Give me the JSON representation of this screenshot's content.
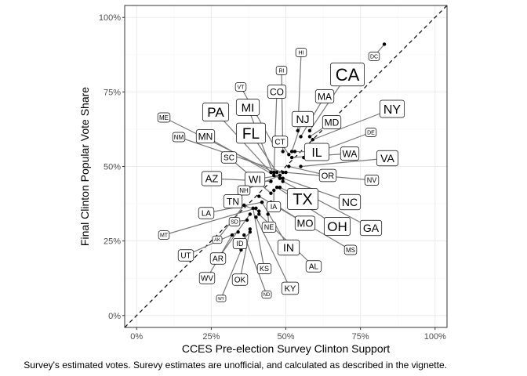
{
  "chart_data": {
    "type": "scatter",
    "title": "",
    "xlabel": "CCES Pre-election Survey Clinton Support",
    "ylabel": "Final Clinton Popular Vote Share",
    "caption": "Survey's estimated votes. Surevy estimates are unofficial, and calculated as described in the vignette.",
    "xlim": [
      -0.04,
      1.04
    ],
    "ylim": [
      -0.04,
      1.04
    ],
    "x_ticks": [
      0,
      0.25,
      0.5,
      0.75,
      1.0
    ],
    "x_tick_labels": [
      "0%",
      "25%",
      "50%",
      "75%",
      "100%"
    ],
    "y_ticks": [
      0,
      0.25,
      0.5,
      0.75,
      1.0
    ],
    "y_tick_labels": [
      "0%",
      "25%",
      "50%",
      "75%",
      "100%"
    ],
    "grid": true,
    "reference_line": "y = x (dashed)",
    "legend": "none",
    "point_color": "#000000",
    "points": [
      {
        "label": "DC",
        "x": 0.83,
        "y": 0.91,
        "size": 7
      },
      {
        "label": "HI",
        "x": 0.54,
        "y": 0.62,
        "size": 7
      },
      {
        "label": "CA",
        "x": 0.58,
        "y": 0.62,
        "size": 22
      },
      {
        "label": "RI",
        "x": 0.49,
        "y": 0.55,
        "size": 7
      },
      {
        "label": "VT",
        "x": 0.46,
        "y": 0.57,
        "size": 7
      },
      {
        "label": "NY",
        "x": 0.59,
        "y": 0.59,
        "size": 16
      },
      {
        "label": "MA",
        "x": 0.55,
        "y": 0.6,
        "size": 12
      },
      {
        "label": "CO",
        "x": 0.46,
        "y": 0.48,
        "size": 12
      },
      {
        "label": "MD",
        "x": 0.58,
        "y": 0.6,
        "size": 12
      },
      {
        "label": "MI",
        "x": 0.46,
        "y": 0.47,
        "size": 15
      },
      {
        "label": "PA",
        "x": 0.45,
        "y": 0.48,
        "size": 17
      },
      {
        "label": "NJ",
        "x": 0.52,
        "y": 0.55,
        "size": 14
      },
      {
        "label": "DE",
        "x": 0.56,
        "y": 0.53,
        "size": 7
      },
      {
        "label": "FL",
        "x": 0.47,
        "y": 0.48,
        "size": 19
      },
      {
        "label": "CT",
        "x": 0.51,
        "y": 0.54,
        "size": 10
      },
      {
        "label": "ME",
        "x": 0.46,
        "y": 0.48,
        "size": 8
      },
      {
        "label": "NM",
        "x": 0.49,
        "y": 0.48,
        "size": 8
      },
      {
        "label": "MN",
        "x": 0.48,
        "y": 0.46,
        "size": 12
      },
      {
        "label": "IL",
        "x": 0.53,
        "y": 0.55,
        "size": 16
      },
      {
        "label": "WA",
        "x": 0.52,
        "y": 0.53,
        "size": 12
      },
      {
        "label": "VA",
        "x": 0.55,
        "y": 0.5,
        "size": 14
      },
      {
        "label": "SC",
        "x": 0.45,
        "y": 0.41,
        "size": 10
      },
      {
        "label": "OR",
        "x": 0.51,
        "y": 0.5,
        "size": 11
      },
      {
        "label": "AZ",
        "x": 0.45,
        "y": 0.45,
        "size": 13
      },
      {
        "label": "WI",
        "x": 0.48,
        "y": 0.47,
        "size": 13
      },
      {
        "label": "NV",
        "x": 0.5,
        "y": 0.48,
        "size": 9
      },
      {
        "label": "NH",
        "x": 0.48,
        "y": 0.47,
        "size": 8
      },
      {
        "label": "TX",
        "x": 0.48,
        "y": 0.43,
        "size": 20
      },
      {
        "label": "NC",
        "x": 0.49,
        "y": 0.46,
        "size": 14
      },
      {
        "label": "TN",
        "x": 0.41,
        "y": 0.35,
        "size": 12
      },
      {
        "label": "IA",
        "x": 0.46,
        "y": 0.42,
        "size": 9
      },
      {
        "label": "LA",
        "x": 0.42,
        "y": 0.38,
        "size": 10
      },
      {
        "label": "MO",
        "x": 0.45,
        "y": 0.38,
        "size": 13
      },
      {
        "label": "OH",
        "x": 0.47,
        "y": 0.43,
        "size": 17
      },
      {
        "label": "GA",
        "x": 0.49,
        "y": 0.45,
        "size": 14
      },
      {
        "label": "SD",
        "x": 0.37,
        "y": 0.32,
        "size": 7
      },
      {
        "label": "NE",
        "x": 0.44,
        "y": 0.34,
        "size": 9
      },
      {
        "label": "MT",
        "x": 0.4,
        "y": 0.36,
        "size": 7
      },
      {
        "label": "AK",
        "x": 0.36,
        "y": 0.37,
        "size": 6
      },
      {
        "label": "IN",
        "x": 0.42,
        "y": 0.38,
        "size": 14
      },
      {
        "label": "MS",
        "x": 0.41,
        "y": 0.4,
        "size": 8
      },
      {
        "label": "ID",
        "x": 0.38,
        "y": 0.28,
        "size": 9
      },
      {
        "label": "UT",
        "x": 0.34,
        "y": 0.28,
        "size": 10
      },
      {
        "label": "AR",
        "x": 0.38,
        "y": 0.34,
        "size": 10
      },
      {
        "label": "AL",
        "x": 0.41,
        "y": 0.34,
        "size": 10
      },
      {
        "label": "KS",
        "x": 0.39,
        "y": 0.36,
        "size": 9
      },
      {
        "label": "WV",
        "x": 0.32,
        "y": 0.27,
        "size": 10
      },
      {
        "label": "OK",
        "x": 0.38,
        "y": 0.29,
        "size": 10
      },
      {
        "label": "KY",
        "x": 0.4,
        "y": 0.33,
        "size": 11
      },
      {
        "label": "ND",
        "x": 0.36,
        "y": 0.27,
        "size": 6
      },
      {
        "label": "WY",
        "x": 0.35,
        "y": 0.22,
        "size": 5
      }
    ]
  }
}
